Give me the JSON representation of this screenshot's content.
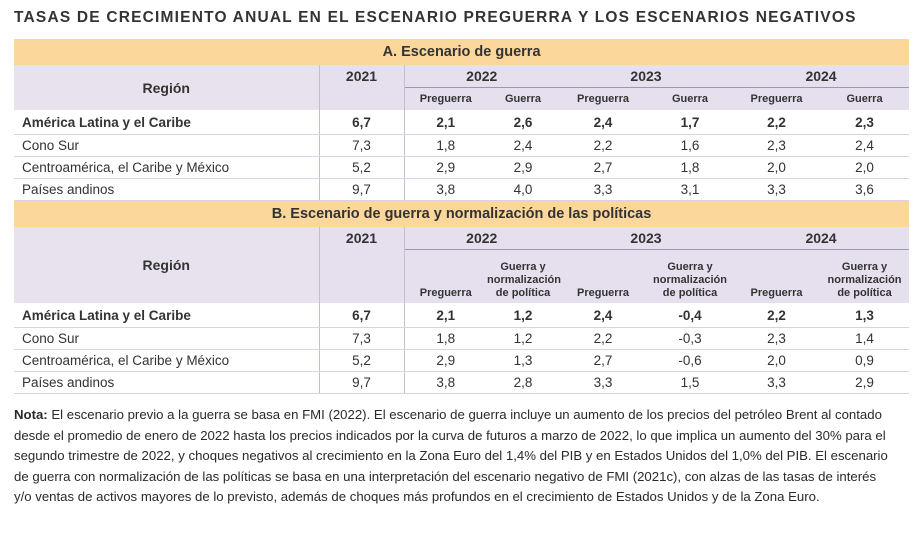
{
  "title": "TASAS DE CRECIMIENTO ANUAL EN EL ESCENARIO PREGUERRA Y LOS ESCENARIOS NEGATIVOS",
  "region_label": "Región",
  "years": [
    "2021",
    "2022",
    "2023",
    "2024"
  ],
  "section_a": {
    "title": "A. Escenario de guerra",
    "sub": [
      "Preguerra",
      "Guerra",
      "Preguerra",
      "Guerra",
      "Preguerra",
      "Guerra"
    ],
    "rows": [
      {
        "name": "América Latina y el Caribe",
        "v": [
          "6,7",
          "2,1",
          "2,6",
          "2,4",
          "1,7",
          "2,2",
          "2,3"
        ]
      },
      {
        "name": "Cono Sur",
        "v": [
          "7,3",
          "1,8",
          "2,4",
          "2,2",
          "1,6",
          "2,3",
          "2,4"
        ]
      },
      {
        "name": "Centroamérica, el Caribe y México",
        "v": [
          "5,2",
          "2,9",
          "2,9",
          "2,7",
          "1,8",
          "2,0",
          "2,0"
        ]
      },
      {
        "name": "Países andinos",
        "v": [
          "9,7",
          "3,8",
          "4,0",
          "3,3",
          "3,1",
          "3,3",
          "3,6"
        ]
      }
    ]
  },
  "section_b": {
    "title": "B. Escenario de guerra y normalización de las políticas",
    "sub": [
      "Preguerra",
      "Guerra y normalización de política",
      "Preguerra",
      "Guerra y normalización de política",
      "Preguerra",
      "Guerra y normalización de política"
    ],
    "rows": [
      {
        "name": "América Latina y el Caribe",
        "v": [
          "6,7",
          "2,1",
          "1,2",
          "2,4",
          "-0,4",
          "2,2",
          "1,3"
        ]
      },
      {
        "name": "Cono Sur",
        "v": [
          "7,3",
          "1,8",
          "1,2",
          "2,2",
          "-0,3",
          "2,3",
          "1,4"
        ]
      },
      {
        "name": "Centroamérica, el Caribe y México",
        "v": [
          "5,2",
          "2,9",
          "1,3",
          "2,7",
          "-0,6",
          "2,0",
          "0,9"
        ]
      },
      {
        "name": "Países andinos",
        "v": [
          "9,7",
          "3,8",
          "2,8",
          "3,3",
          "1,5",
          "3,3",
          "2,9"
        ]
      }
    ]
  },
  "note": {
    "label": "Nota:",
    "text": " El escenario previo a la guerra se basa en FMI (2022). El escenario de guerra incluye un aumento de los precios del petróleo Brent al contado desde el promedio de enero de 2022 hasta los precios indicados por la curva de futuros a marzo de 2022, lo que implica un aumento del 30% para el segundo trimestre de 2022, y choques negativos al crecimiento en la Zona Euro del 1,4% del PIB y en Estados Unidos del 1,0% del PIB. El escenario de guerra con normalización de las políticas se basa en una interpretación del escenario negativo de FMI (2021c), con alzas de las tasas de interés y/o ventas de activos mayores de lo previsto, además de choques más profundos en el crecimiento de Estados Unidos y de la Zona Euro."
  }
}
